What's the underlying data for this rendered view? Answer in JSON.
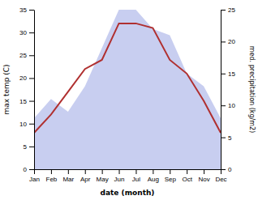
{
  "chart_data": {
    "type": "line",
    "xlabel": "date (month)",
    "ylabel": "max temp (C)",
    "y2label": "med. precipitation (kg/m2)",
    "categories": [
      "Jan",
      "Feb",
      "Mar",
      "Apr",
      "May",
      "Jun",
      "Jul",
      "Aug",
      "Sep",
      "Oct",
      "Nov",
      "Dec"
    ],
    "series": [
      {
        "type": "area",
        "axis": "y2",
        "color": "#c8cef0",
        "values": [
          8,
          11,
          9,
          13,
          19,
          25,
          25,
          22,
          21,
          15,
          13,
          8
        ]
      },
      {
        "type": "line",
        "color": "#b03030",
        "values": [
          8,
          12,
          17,
          22,
          24,
          32,
          32,
          31,
          24,
          21,
          15,
          8
        ]
      }
    ],
    "ylim": [
      0,
      35
    ],
    "yticks": [
      0,
      5,
      10,
      15,
      20,
      25,
      30,
      35
    ],
    "y2lim": [
      0,
      25
    ],
    "y2ticks": [
      0,
      5,
      10,
      15,
      20,
      25
    ],
    "grid": false
  }
}
